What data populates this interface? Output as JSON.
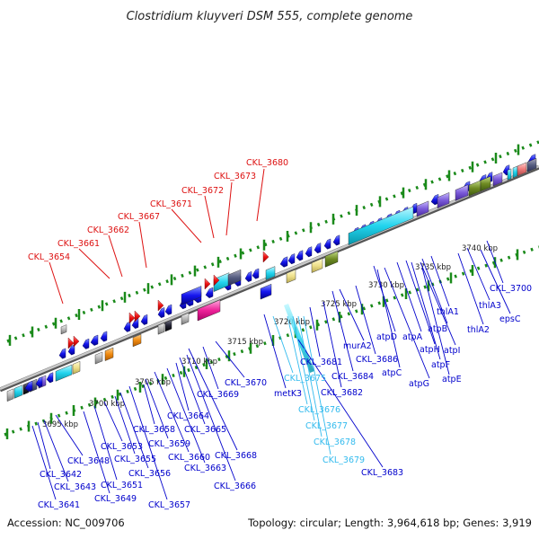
{
  "title": "Clostridium kluyveri DSM 555, complete genome",
  "footer": {
    "accession": "Accession: NC_009706",
    "summary": "Topology: circular; Length: 3,964,618 bp; Genes: 3,919"
  },
  "colors": {
    "top_labels": "#dd1111",
    "bottom_labels": "#0000cc",
    "cyan_labels": "#33bbee",
    "dots": "#1a8a1a",
    "backbone": "#999999"
  },
  "kbp_ticks": [
    "3695 kbp",
    "3700 kbp",
    "3705 kbp",
    "3710 kbp",
    "3715 kbp",
    "3720 kbp",
    "3725 kbp",
    "3730 kbp",
    "3735 kbp",
    "3740 kbp"
  ],
  "top_labels": [
    "CKL_3654",
    "CKL_3661",
    "CKL_3662",
    "CKL_3667",
    "CKL_3671",
    "CKL_3672",
    "CKL_3673",
    "CKL_3680"
  ],
  "bottom_labels": [
    "CKL_3641",
    "CKL_3642",
    "CKL_3643",
    "CKL_3648",
    "CKL_3649",
    "CKL_3651",
    "CKL_3653",
    "CKL_3655",
    "CKL_3656",
    "CKL_3657",
    "CKL_3658",
    "CKL_3659",
    "CKL_3660",
    "CKL_3663",
    "CKL_3664",
    "CKL_3665",
    "CKL_3666",
    "CKL_3668",
    "CKL_3669",
    "CKL_3670",
    "metK3",
    "CKL_3681",
    "CKL_3682",
    "CKL_3683",
    "CKL_3684",
    "murA2",
    "CKL_3686",
    "atpD",
    "atpC",
    "atpA",
    "atpG",
    "atpB",
    "atpH",
    "atpF",
    "atpI",
    "atpE",
    "thlA1",
    "thlA2",
    "thlA3",
    "epsC",
    "CKL_3700"
  ],
  "cyan_labels": [
    "CKL_3675",
    "CKL_3676",
    "CKL_3677",
    "CKL_3678",
    "CKL_3679"
  ]
}
